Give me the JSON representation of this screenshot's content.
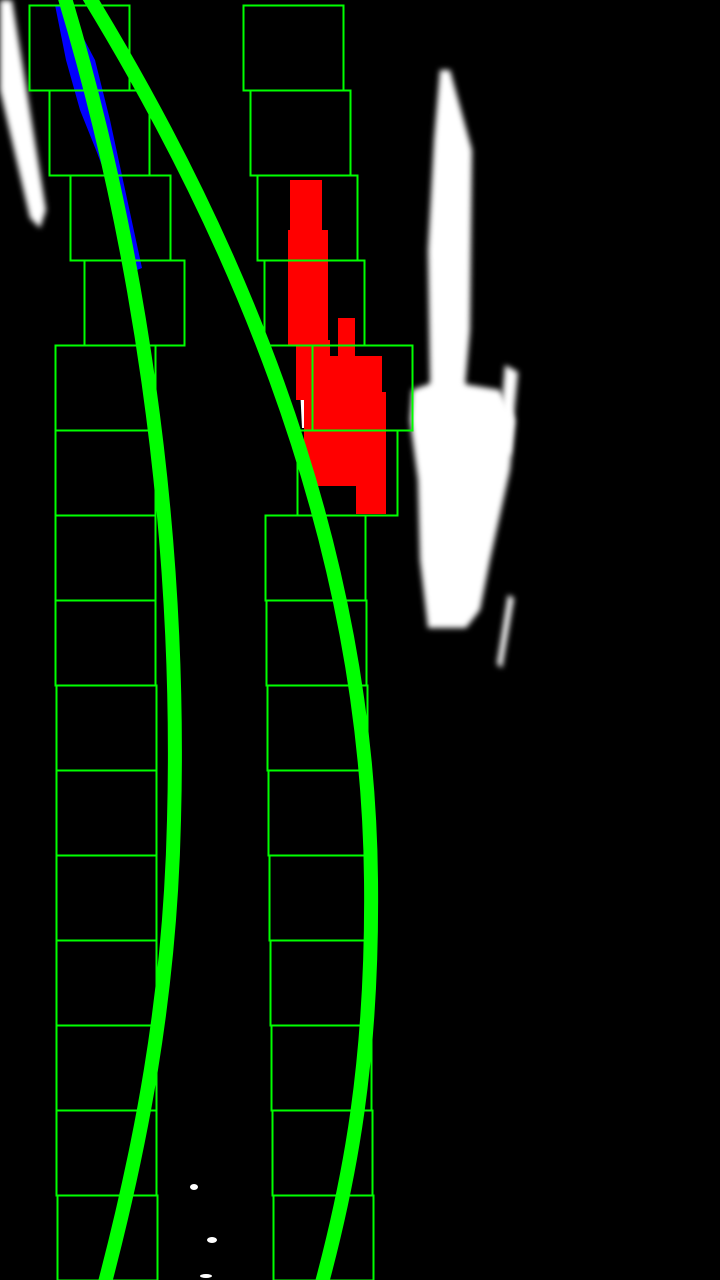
{
  "view": {
    "name": "lane-detection-sliding-window-view",
    "background_color": "#000000"
  },
  "colors": {
    "search_window": "#00ff00",
    "fitted_lane_line": "#00ff00",
    "left_lane_pixels": "#0000ff",
    "right_lane_pixels": "#ff0000",
    "raw_binary_pixels": "#ffffff"
  },
  "lanes": {
    "left": {
      "window_count": 15,
      "pixel_color_key": "left_lane_pixels"
    },
    "right": {
      "window_count": 15,
      "pixel_color_key": "right_lane_pixels"
    }
  }
}
